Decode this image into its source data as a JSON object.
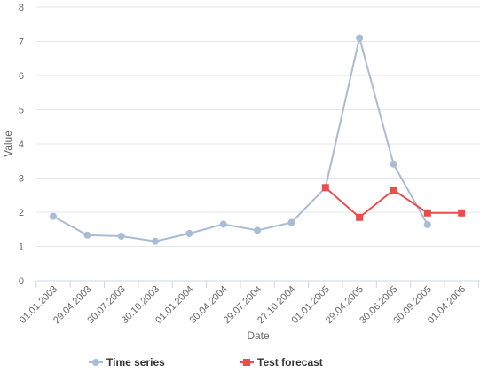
{
  "chart_data": {
    "type": "line",
    "xlabel": "Date",
    "ylabel": "Value",
    "ylim": [
      0,
      8
    ],
    "yticks": [
      "0",
      "1",
      "2",
      "3",
      "4",
      "5",
      "6",
      "7",
      "8"
    ],
    "categories": [
      "01.01.2003",
      "29.04.2003",
      "30.07.2003",
      "30.10.2003",
      "01.01.2004",
      "30.04.2004",
      "29.07.2004",
      "27.10.2004",
      "01.01.2005",
      "29.04.2005",
      "30.06.2005",
      "30.09.2005",
      "01.04.2006"
    ],
    "grid": "horizontal",
    "legend_position": "bottom",
    "series": [
      {
        "name": "Time series",
        "color": "#a9bcd6",
        "marker": "circle",
        "values": [
          1.88,
          1.33,
          1.3,
          1.15,
          1.38,
          1.65,
          1.47,
          1.7,
          2.72,
          7.1,
          3.41,
          1.64,
          null
        ]
      },
      {
        "name": "Test forecast",
        "color": "#ee4c4c",
        "marker": "square",
        "values": [
          null,
          null,
          null,
          null,
          null,
          null,
          null,
          null,
          2.72,
          1.85,
          2.65,
          1.98,
          1.98
        ]
      }
    ]
  }
}
